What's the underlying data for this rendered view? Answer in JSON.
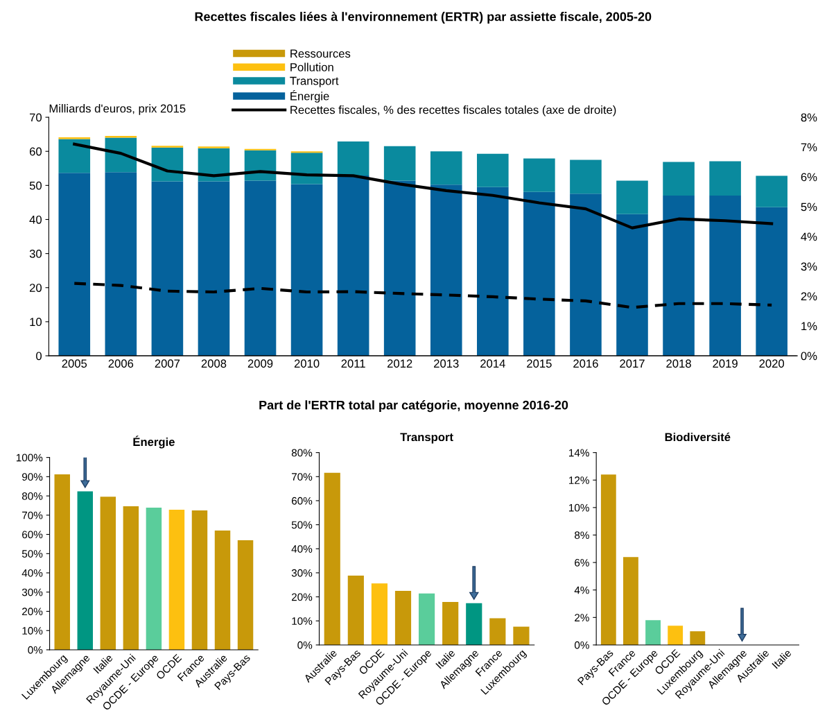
{
  "chart_data": [
    {
      "type": "bar",
      "title": "Recettes fiscales liées à l'environnement (ERTR) par assiette fiscale, 2005-20",
      "ylabel": "Milliards d'euros, prix 2015",
      "stacked": true,
      "legend": "top",
      "categories": [
        "2005",
        "2006",
        "2007",
        "2008",
        "2009",
        "2010",
        "2011",
        "2012",
        "2013",
        "2014",
        "2015",
        "2016",
        "2017",
        "2018",
        "2019",
        "2020"
      ],
      "series": [
        {
          "name": "Énergie",
          "color": "#05629c",
          "values": [
            53.7,
            53.9,
            51.2,
            51.2,
            51.4,
            50.4,
            52.9,
            51.4,
            50.2,
            49.5,
            48.1,
            47.6,
            41.6,
            47.0,
            47.0,
            43.6
          ]
        },
        {
          "name": "Transport",
          "color": "#0a8a9e",
          "values": [
            9.9,
            10.1,
            9.9,
            9.7,
            8.9,
            9.2,
            10.0,
            10.1,
            9.8,
            9.8,
            9.8,
            9.9,
            9.8,
            9.9,
            10.1,
            9.2
          ]
        },
        {
          "name": "Pollution",
          "color": "#fdc010",
          "values": [
            0.5,
            0.5,
            0.5,
            0.5,
            0.4,
            0.4,
            0,
            null,
            null,
            null,
            null,
            null,
            null,
            null,
            null,
            null
          ]
        },
        {
          "name": "Ressources",
          "color": "#c8990a",
          "values": [
            0,
            0,
            0,
            0,
            0,
            0,
            0,
            0,
            0,
            0,
            0,
            0,
            0,
            0,
            0,
            0
          ]
        },
        {
          "name": "Recettes fiscales, % des recettes fiscales totales (axe de droite)",
          "type": "line",
          "axis": "y2",
          "color": "#000000",
          "line_style": "solid",
          "values": [
            7.1,
            6.79,
            6.2,
            6.04,
            6.18,
            6.07,
            6.04,
            5.76,
            5.54,
            5.38,
            5.13,
            4.93,
            4.29,
            4.59,
            4.53,
            4.43
          ]
        },
        {
          "type": "line",
          "axis": "y2",
          "color": "#000000",
          "line_style": "dashed",
          "values": [
            2.43,
            2.36,
            2.17,
            2.14,
            2.26,
            2.14,
            2.15,
            2.09,
            2.04,
            1.98,
            1.9,
            1.84,
            1.62,
            1.75,
            1.75,
            1.7
          ]
        }
      ],
      "ylim": [
        0,
        70
      ],
      "yticks": [
        0,
        10,
        20,
        30,
        40,
        50,
        60,
        70
      ],
      "y2lim": [
        0,
        8
      ],
      "y2ticks": [
        {
          "value": 0,
          "label": "0%"
        },
        {
          "value": 1,
          "label": "1%"
        },
        {
          "value": 2,
          "label": "2%"
        },
        {
          "value": 3,
          "label": "3%"
        },
        {
          "value": 4,
          "label": "4%"
        },
        {
          "value": 5,
          "label": "5%"
        },
        {
          "value": 6,
          "label": "6%"
        },
        {
          "value": 7,
          "label": "7%"
        },
        {
          "value": 8,
          "label": "8%"
        }
      ]
    },
    {
      "type": "bar",
      "title": "Énergie",
      "annotations": [
        "Part de l'ERTR total par catégorie, moyenne 2016-20"
      ],
      "categories": [
        "Luxembourg",
        "Allemagne",
        "Italie",
        "Royaume-Uni",
        "OCDE - Europe",
        "OCDE",
        "France",
        "Australie",
        "Pays-Bas"
      ],
      "values": [
        91.2,
        82.4,
        79.6,
        74.6,
        73.9,
        72.8,
        72.5,
        62.0,
        57.0
      ],
      "colors": [
        "#c8990a",
        "#009682",
        "#c8990a",
        "#c8990a",
        "#5acd9b",
        "#fdc010",
        "#c8990a",
        "#c8990a",
        "#c8990a"
      ],
      "ylim": [
        0,
        100
      ],
      "yticks": [
        {
          "value": 0,
          "label": "0%"
        },
        {
          "value": 10,
          "label": "10%"
        },
        {
          "value": 20,
          "label": "20%"
        },
        {
          "value": 30,
          "label": "30%"
        },
        {
          "value": 40,
          "label": "40%"
        },
        {
          "value": 50,
          "label": "50%"
        },
        {
          "value": 60,
          "label": "60%"
        },
        {
          "value": 70,
          "label": "70%"
        },
        {
          "value": 80,
          "label": "80%"
        },
        {
          "value": 90,
          "label": "90%"
        },
        {
          "value": 100,
          "label": "100%"
        }
      ]
    },
    {
      "type": "bar",
      "title": "Transport",
      "categories": [
        "Australie",
        "Pays-Bas",
        "OCDE",
        "Royaume-Uni",
        "OCDE - Europe",
        "Italie",
        "Allemagne",
        "France",
        "Luxembourg"
      ],
      "values": [
        71.6,
        28.8,
        25.6,
        22.5,
        21.4,
        17.9,
        17.4,
        11.1,
        7.6
      ],
      "colors": [
        "#c8990a",
        "#c8990a",
        "#fdc010",
        "#c8990a",
        "#5acd9b",
        "#c8990a",
        "#009682",
        "#c8990a",
        "#c8990a"
      ],
      "ylim": [
        0,
        80
      ],
      "yticks": [
        {
          "value": 0,
          "label": "0%"
        },
        {
          "value": 10,
          "label": "10%"
        },
        {
          "value": 20,
          "label": "20%"
        },
        {
          "value": 30,
          "label": "30%"
        },
        {
          "value": 40,
          "label": "40%"
        },
        {
          "value": 50,
          "label": "50%"
        },
        {
          "value": 60,
          "label": "60%"
        },
        {
          "value": 70,
          "label": "70%"
        },
        {
          "value": 80,
          "label": "80%"
        }
      ]
    },
    {
      "type": "bar",
      "title": "Biodiversité",
      "categories": [
        "Pays-Bas",
        "France",
        "OCDE - Europe",
        "OCDE",
        "Luxembourg",
        "Royaume-Uni",
        "Allemagne",
        "Australie",
        "Italie"
      ],
      "values": [
        12.4,
        6.4,
        1.8,
        1.4,
        1.0,
        0,
        0,
        0,
        0
      ],
      "colors": [
        "#c8990a",
        "#c8990a",
        "#5acd9b",
        "#fdc010",
        "#c8990a",
        "#c8990a",
        "#009682",
        "#c8990a",
        "#c8990a"
      ],
      "ylim": [
        0,
        14
      ],
      "yticks": [
        {
          "value": 0,
          "label": "0%"
        },
        {
          "value": 2,
          "label": "2%"
        },
        {
          "value": 4,
          "label": "4%"
        },
        {
          "value": 6,
          "label": "6%"
        },
        {
          "value": 8,
          "label": "8%"
        },
        {
          "value": 10,
          "label": "10%"
        },
        {
          "value": 12,
          "label": "12%"
        },
        {
          "value": 14,
          "label": "14%"
        }
      ]
    }
  ]
}
